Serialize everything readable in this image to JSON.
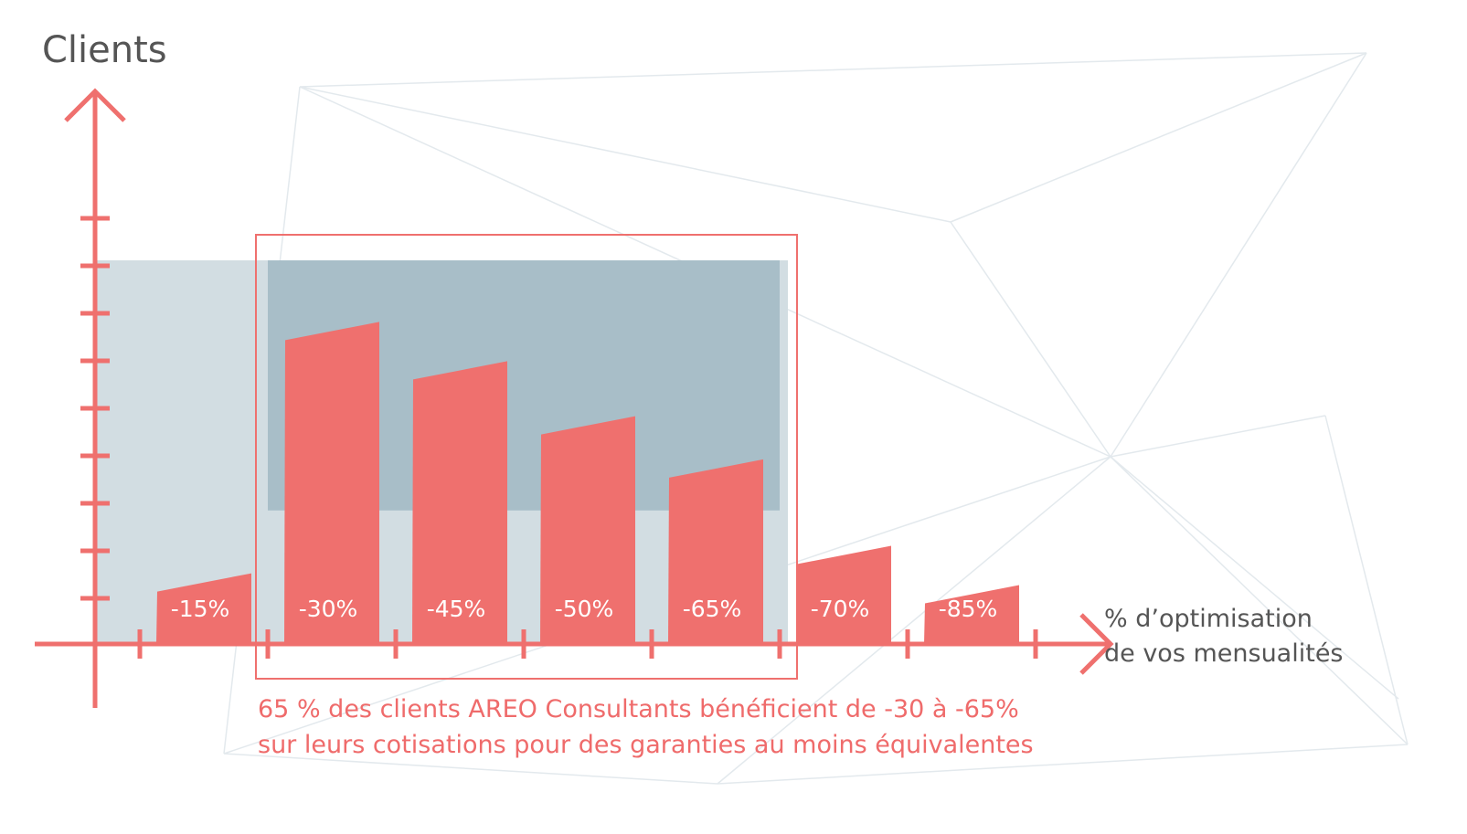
{
  "colors": {
    "accent": "#ef706e",
    "highlight_band": "#a8bec8",
    "light_band": "#d2dde2",
    "text": "#555555",
    "caption": "#ef6b6b",
    "background_lines": "#e3e9ed"
  },
  "chart_data": {
    "type": "bar",
    "ylabel": "Clients",
    "xlabel_lines": [
      "% d’optimisation",
      "de vos mensualités"
    ],
    "categories": [
      "-15%",
      "-30%",
      "-45%",
      "-50%",
      "-65%",
      "-70%",
      "-85%"
    ],
    "values": [
      1.8,
      8.2,
      7.2,
      5.8,
      4.7,
      2.5,
      1.5
    ],
    "highlight": [
      "-30%",
      "-65%"
    ],
    "ylim": [
      0,
      10
    ],
    "y_ticks": 9,
    "caption_lines": [
      "65 % des clients AREO Consultants bénéficient de -30 à -65%",
      "sur leurs cotisations pour des garanties au moins équivalentes"
    ]
  }
}
